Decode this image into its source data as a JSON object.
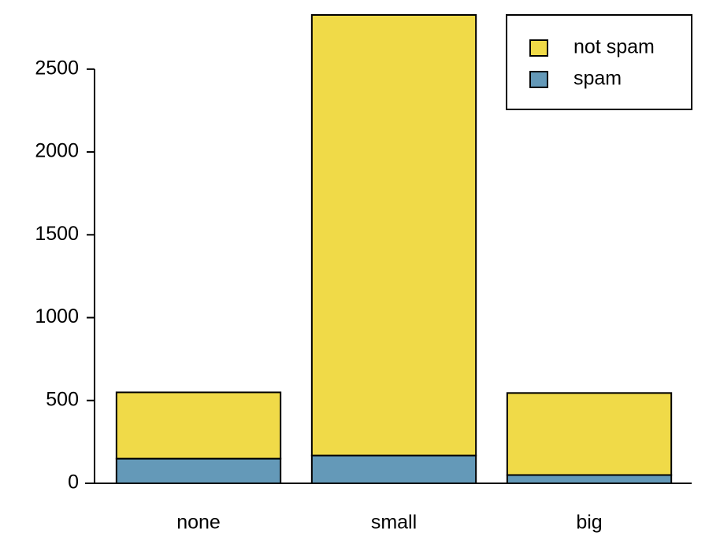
{
  "chart_data": {
    "type": "stacked-bar",
    "categories": [
      "none",
      "small",
      "big"
    ],
    "series": [
      {
        "name": "not spam",
        "color": "#f0da48",
        "values": [
          400,
          2659,
          495
        ]
      },
      {
        "name": "spam",
        "color": "#6499b8",
        "values": [
          149,
          168,
          50
        ]
      }
    ],
    "ylim": [
      0,
      2827
    ],
    "yticks": [
      0,
      500,
      1000,
      1500,
      2000,
      2500
    ],
    "legend": "top-right",
    "grid": false
  }
}
